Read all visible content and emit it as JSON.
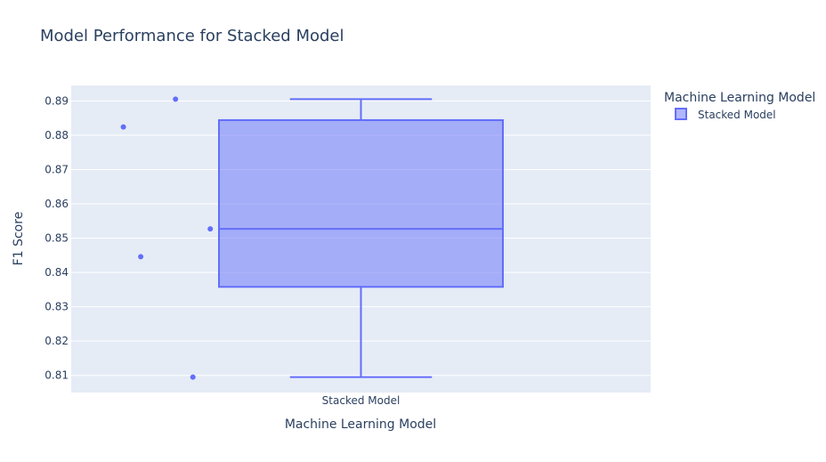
{
  "chart_data": {
    "type": "box",
    "title": "Model Performance for Stacked Model",
    "xlabel": "Machine Learning Model",
    "ylabel": "F1 Score",
    "categories": [
      "Stacked Model"
    ],
    "ylim": [
      0.805,
      0.8945
    ],
    "yticks": [
      0.81,
      0.82,
      0.83,
      0.84,
      0.85,
      0.86,
      0.87,
      0.88,
      0.89
    ],
    "ytick_labels": [
      "0.81",
      "0.82",
      "0.83",
      "0.84",
      "0.85",
      "0.86",
      "0.87",
      "0.88",
      "0.89"
    ],
    "series": [
      {
        "name": "Stacked Model",
        "color": "#636efa",
        "points": [
          0.8905,
          0.8824,
          0.8527,
          0.8446,
          0.8095
        ],
        "box": {
          "min": 0.8095,
          "q1": 0.8358,
          "median": 0.8527,
          "q3": 0.8844,
          "max": 0.8905
        }
      }
    ],
    "legend": {
      "title": "Machine Learning Model",
      "placement": "top-right"
    },
    "grid": true,
    "plot_bgcolor": "#e5ecf6"
  }
}
